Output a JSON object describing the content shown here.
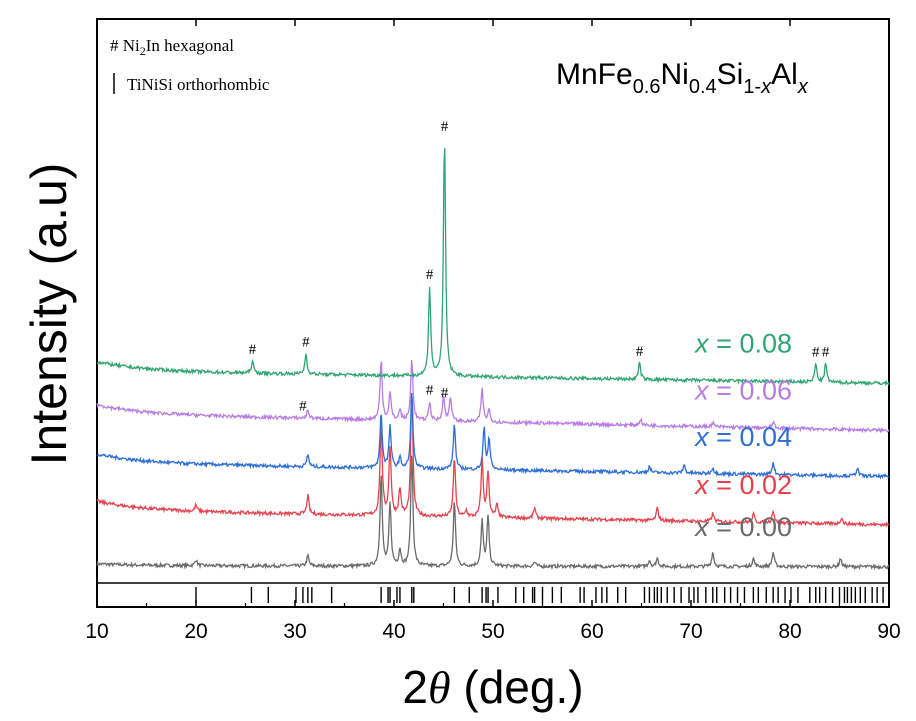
{
  "chart_data": {
    "type": "line",
    "title": "MnFe0.6Ni0.4Si1-xAlx",
    "formula": {
      "p1": "MnFe",
      "s1": "0.6",
      "p2": "Ni",
      "s2": "0.4",
      "p3": "Si",
      "s3a": "1-",
      "s3b": "x",
      "p4": "Al",
      "s4": "x"
    },
    "xlabel": "2θ (deg.)",
    "xlabel_parts": {
      "num": "2",
      "theta": "θ",
      "rest": " (deg.)"
    },
    "ylabel": "Intensity (a.u)",
    "xlim": [
      10,
      90
    ],
    "xticks": [
      10,
      20,
      30,
      40,
      50,
      60,
      70,
      80,
      90
    ],
    "yticks": false,
    "legend": {
      "hash_entry": {
        "symbol": "#",
        "label_pre": "Ni",
        "label_sub": "2",
        "label_post": "In hexagonal"
      },
      "bar_entry": {
        "label": "TiNiSi orthorhombic"
      }
    },
    "series": [
      {
        "name": "x = 0.00",
        "var": "x",
        "value_text": " = 0.00",
        "color": "#6b6b6b",
        "baseline": 0.6,
        "end_baseline": 0.55,
        "peaks": [
          [
            20.0,
            0.3
          ],
          [
            31.3,
            0.5
          ],
          [
            38.7,
            4.5
          ],
          [
            39.6,
            3.0
          ],
          [
            40.6,
            0.8
          ],
          [
            41.8,
            5.5
          ],
          [
            46.1,
            3.2
          ],
          [
            48.9,
            2.2
          ],
          [
            49.5,
            2.4
          ],
          [
            54.2,
            0.2
          ],
          [
            65.8,
            0.3
          ],
          [
            66.6,
            0.4
          ],
          [
            72.2,
            0.7
          ],
          [
            76.3,
            0.4
          ],
          [
            78.3,
            0.7
          ],
          [
            85.1,
            0.4
          ]
        ]
      },
      {
        "name": "x = 0.02",
        "var": "x",
        "value_text": " = 0.02",
        "color": "#e8414e",
        "baseline": 3.3,
        "end_baseline": 2.6,
        "peaks": [
          [
            20.0,
            0.3
          ],
          [
            31.3,
            0.9
          ],
          [
            38.7,
            4.6
          ],
          [
            39.6,
            3.3
          ],
          [
            40.6,
            1.3
          ],
          [
            41.8,
            6.1
          ],
          [
            46.1,
            2.9
          ],
          [
            47.3,
            0.3
          ],
          [
            48.9,
            2.8
          ],
          [
            49.5,
            2.2
          ],
          [
            50.4,
            0.6
          ],
          [
            54.2,
            0.5
          ],
          [
            66.6,
            0.6
          ],
          [
            72.2,
            0.4
          ],
          [
            76.3,
            0.4
          ],
          [
            78.3,
            0.6
          ],
          [
            85.2,
            0.3
          ]
        ]
      },
      {
        "name": "x = 0.04",
        "var": "x",
        "value_text": " = 0.04",
        "color": "#2e6fd6",
        "baseline": 5.6,
        "end_baseline": 4.95,
        "peaks": [
          [
            31.3,
            0.6
          ],
          [
            38.7,
            2.7
          ],
          [
            39.6,
            2.0
          ],
          [
            40.6,
            0.5
          ],
          [
            41.8,
            3.8
          ],
          [
            46.1,
            2.2
          ],
          [
            49.1,
            2.0
          ],
          [
            49.6,
            1.5
          ],
          [
            65.8,
            0.3
          ],
          [
            69.3,
            0.4
          ],
          [
            72.2,
            0.3
          ],
          [
            78.3,
            0.6
          ],
          [
            86.8,
            0.4
          ]
        ]
      },
      {
        "name": "x = 0.06",
        "var": "x",
        "value_text": " = 0.06",
        "color": "#b87de4",
        "baseline": 8.0,
        "end_baseline": 7.2,
        "peaks": [
          [
            31.3,
            0.4
          ],
          [
            38.7,
            2.9
          ],
          [
            39.6,
            1.3
          ],
          [
            40.6,
            0.5
          ],
          [
            41.8,
            3.0
          ],
          [
            43.6,
            0.9
          ],
          [
            45.0,
            1.2
          ],
          [
            45.7,
            1.2
          ],
          [
            48.9,
            1.6
          ],
          [
            49.6,
            0.6
          ],
          [
            64.9,
            0.3
          ],
          [
            72.2,
            0.2
          ],
          [
            78.3,
            0.3
          ]
        ]
      },
      {
        "name": "x = 0.08",
        "var": "x",
        "value_text": " = 0.08",
        "color": "#2fa572",
        "baseline": 10.1,
        "end_baseline": 9.5,
        "peaks": [
          [
            25.7,
            0.6
          ],
          [
            31.1,
            1.0
          ],
          [
            43.6,
            4.3
          ],
          [
            45.1,
            11.6
          ],
          [
            64.8,
            0.8
          ],
          [
            82.6,
            0.9
          ],
          [
            83.6,
            0.9
          ]
        ]
      }
    ],
    "hash_markers": [
      {
        "series": "x = 0.08",
        "x": [
          25.7,
          31.1,
          43.6,
          45.1,
          64.8,
          82.6,
          83.6
        ]
      },
      {
        "series": "x = 0.06",
        "x": [
          30.8,
          43.6,
          45.1
        ]
      }
    ],
    "reference_bars": [
      20.0,
      25.6,
      27.3,
      30.1,
      30.8,
      31.3,
      31.7,
      33.7,
      38.7,
      39.4,
      39.6,
      40.3,
      40.6,
      41.8,
      42.0,
      46.1,
      47.6,
      48.9,
      49.3,
      49.5,
      50.5,
      52.3,
      53.1,
      54.0,
      54.2,
      55.0,
      56.0,
      56.9,
      58.8,
      59.2,
      60.4,
      61.0,
      61.5,
      62.6,
      63.4,
      65.3,
      65.8,
      66.3,
      66.6,
      67.0,
      67.6,
      68.3,
      69.0,
      69.8,
      70.3,
      70.7,
      71.5,
      72.2,
      72.6,
      73.4,
      74.0,
      74.7,
      75.4,
      76.3,
      76.8,
      77.6,
      78.3,
      78.8,
      79.5,
      80.1,
      80.8,
      82.0,
      82.6,
      83.0,
      83.6,
      84.3,
      85.0,
      85.5,
      85.8,
      86.2,
      86.6,
      87.1,
      87.6,
      88.3,
      88.8,
      89.4
    ]
  }
}
